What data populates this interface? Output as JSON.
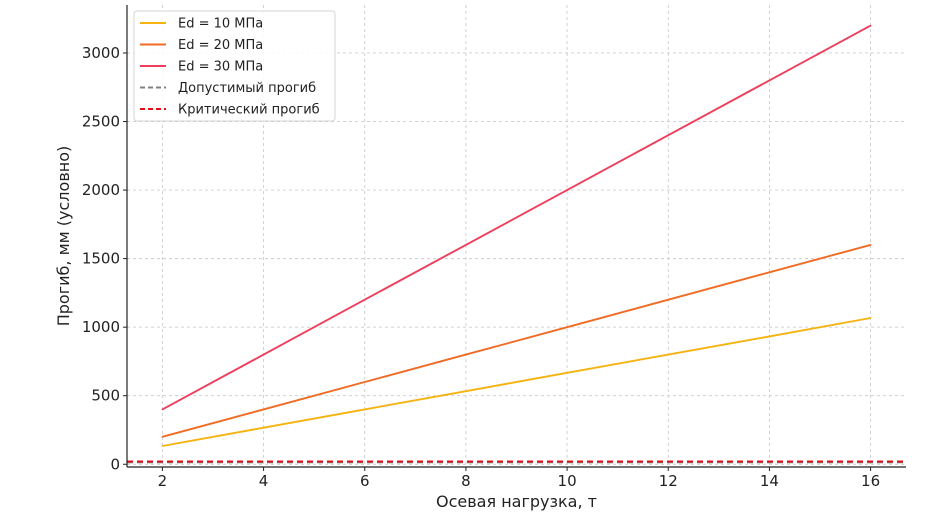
{
  "chart_data": {
    "type": "line",
    "title": "",
    "xlabel": "Осевая нагрузка, т",
    "ylabel": "Прогиб, мм (условно)",
    "xlim": [
      1.3,
      16.7
    ],
    "ylim": [
      -20,
      3350
    ],
    "xticks": [
      2,
      4,
      6,
      8,
      10,
      12,
      14,
      16
    ],
    "yticks": [
      0,
      500,
      1000,
      1500,
      2000,
      2500,
      3000
    ],
    "grid": true,
    "legend_position": "top-left",
    "series": [
      {
        "name": "Ed = 10 МПа",
        "color": "#f5b30f",
        "dash": "solid",
        "x": [
          2,
          4,
          6,
          8,
          10,
          12,
          14,
          16
        ],
        "values": [
          133,
          267,
          400,
          533,
          667,
          800,
          933,
          1067
        ]
      },
      {
        "name": "Ed = 20 МПа",
        "color": "#f06b23",
        "dash": "solid",
        "x": [
          2,
          4,
          6,
          8,
          10,
          12,
          14,
          16
        ],
        "values": [
          200,
          400,
          600,
          800,
          1000,
          1200,
          1400,
          1600
        ]
      },
      {
        "name": "Ed = 30 МПа",
        "color": "#ef3e5b",
        "dash": "solid",
        "x": [
          2,
          4,
          6,
          8,
          10,
          12,
          14,
          16
        ],
        "values": [
          400,
          800,
          1200,
          1600,
          2000,
          2400,
          2800,
          3200
        ]
      },
      {
        "name": "Допустимый прогиб",
        "color": "#808080",
        "dash": "dashed",
        "hline": 15
      },
      {
        "name": "Критический прогиб",
        "color": "#e3101a",
        "dash": "dashed",
        "hline": 20
      }
    ]
  }
}
